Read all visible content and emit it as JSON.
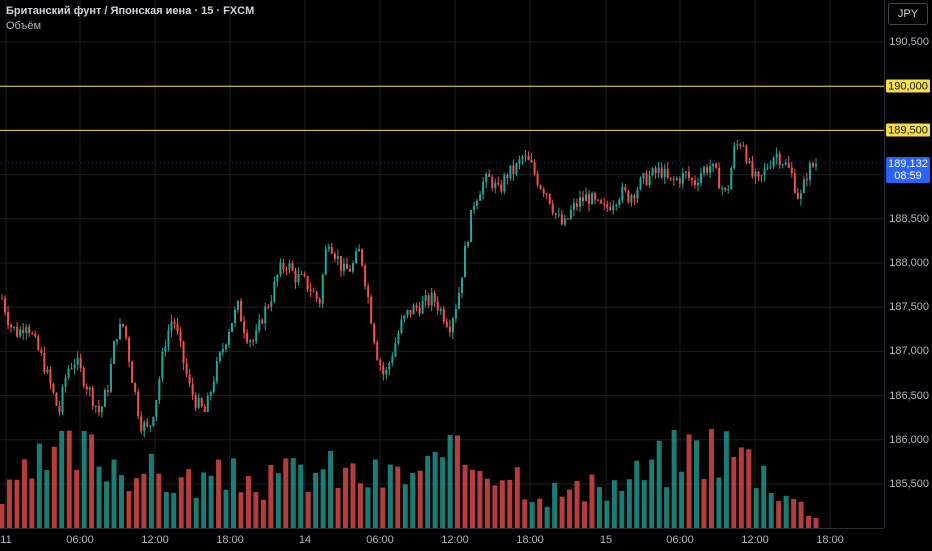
{
  "legend": {
    "title": "Британский фунт / Японская иена · 15 · FXCM",
    "volume_label": "Объём"
  },
  "currency_button": "JPY",
  "price_axis": {
    "labels": [
      "190,500",
      "188,500",
      "188,000",
      "187,500",
      "187,000",
      "186,500",
      "186,000",
      "185,500"
    ],
    "values": [
      190.5,
      188.5,
      188.0,
      187.5,
      187.0,
      186.5,
      186.0,
      185.5
    ]
  },
  "levels": [
    {
      "label": "190,000",
      "value": 190.0
    },
    {
      "label": "189,500",
      "value": 189.5
    }
  ],
  "last_price": {
    "label": "189,132",
    "countdown": "08:59",
    "value": 189.132
  },
  "time_axis": {
    "labels": [
      "11",
      "06:00",
      "12:00",
      "18:00",
      "14",
      "06:00",
      "12:00",
      "18:00",
      "15",
      "06:00",
      "12:00",
      "18:00"
    ]
  },
  "colors": {
    "up": "#26a69a",
    "down": "#ef5350",
    "level": "#f7dd46",
    "last": "#2962ff",
    "grid": "#1b1e26"
  },
  "chart_data": {
    "type": "candlestick",
    "symbol": "GBPJPY",
    "interval": "15",
    "y_axis": {
      "min": 185.3,
      "max": 190.65
    },
    "close_series": [
      187.6,
      187.3,
      187.2,
      187.35,
      187.1,
      186.9,
      186.6,
      186.3,
      186.8,
      186.9,
      186.7,
      186.5,
      186.3,
      186.6,
      187.2,
      187.3,
      186.7,
      186.2,
      186.1,
      186.5,
      187.1,
      187.4,
      187.0,
      186.6,
      186.4,
      186.3,
      186.7,
      187.0,
      187.3,
      187.5,
      187.2,
      187.1,
      187.4,
      187.6,
      187.9,
      188.0,
      187.85,
      187.8,
      187.7,
      187.55,
      188.3,
      188.1,
      187.9,
      187.95,
      188.15,
      187.6,
      187.0,
      186.7,
      187.0,
      187.3,
      187.45,
      187.5,
      187.55,
      187.6,
      187.45,
      187.3,
      187.6,
      188.2,
      188.7,
      188.9,
      188.95,
      188.8,
      189.0,
      189.05,
      189.2,
      189.1,
      188.9,
      188.8,
      188.55,
      188.4,
      188.6,
      188.7,
      188.75,
      188.65,
      188.6,
      188.7,
      188.8,
      188.75,
      188.85,
      188.95,
      189.0,
      189.05,
      188.9,
      188.95,
      189.0,
      188.9,
      189.05,
      189.1,
      188.95,
      188.75,
      189.3,
      189.4,
      189.0,
      188.9,
      189.1,
      189.25,
      189.15,
      189.0,
      188.7,
      189.05,
      189.13
    ],
    "time_labels": [
      "11",
      "06:00",
      "12:00",
      "18:00",
      "14",
      "06:00",
      "12:00",
      "18:00",
      "15",
      "06:00",
      "12:00",
      "18:00"
    ],
    "horizontal_levels": [
      190.0,
      189.5
    ],
    "last_price": 189.132,
    "volume": "relative bars at bottom of chart"
  }
}
